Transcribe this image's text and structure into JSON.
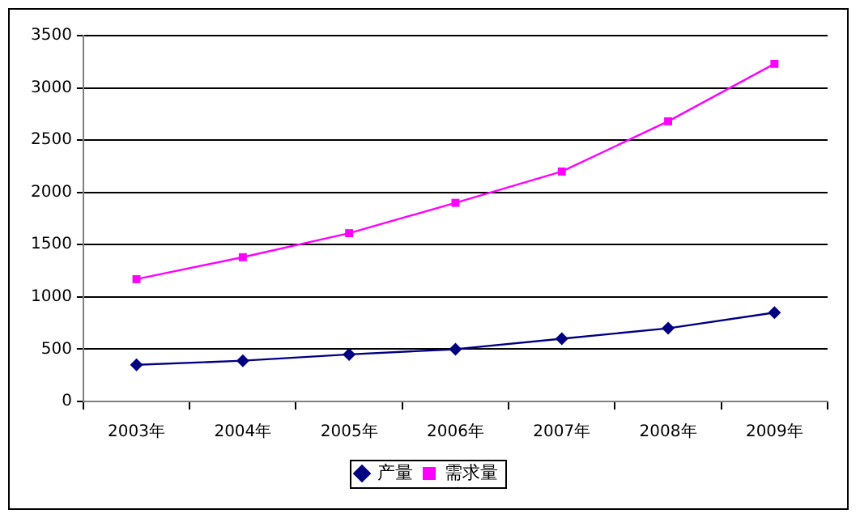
{
  "chart_data": {
    "type": "line",
    "categories": [
      "2003年",
      "2004年",
      "2005年",
      "2006年",
      "2007年",
      "2008年",
      "2009年"
    ],
    "series": [
      {
        "name": "产量",
        "color": "#000080",
        "marker": "diamond",
        "values": [
          350,
          390,
          450,
          500,
          600,
          700,
          850
        ]
      },
      {
        "name": "需求量",
        "color": "#ff00ff",
        "marker": "square",
        "values": [
          1170,
          1380,
          1610,
          1900,
          2200,
          2680,
          3230
        ]
      }
    ],
    "ylim": [
      0,
      3500
    ],
    "yticks": [
      0,
      500,
      1000,
      1500,
      2000,
      2500,
      3000,
      3500
    ],
    "grid": "y",
    "legend": "bottom",
    "line_style": "solid"
  }
}
